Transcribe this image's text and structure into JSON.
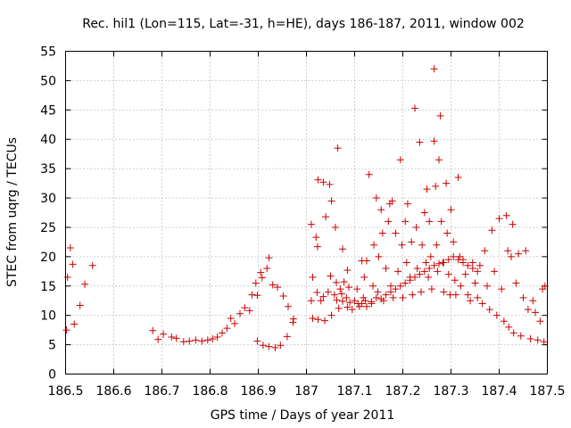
{
  "chart_data": {
    "type": "scatter",
    "title": "Rec. hil1 (Lon=115, Lat=-31, h=HE), days 186-187, 2011, window 002",
    "xlabel": "GPS time / Days of year 2011",
    "ylabel": "STEC from uqrg / TECUs",
    "xlim": [
      186.5,
      187.5
    ],
    "ylim": [
      0,
      55
    ],
    "xticks": [
      186.5,
      186.6,
      186.7,
      186.8,
      186.9,
      187,
      187.1,
      187.2,
      187.3,
      187.4,
      187.5
    ],
    "xtick_labels": [
      "186.5",
      "186.6",
      "186.7",
      "186.8",
      "186.9",
      "187",
      "187.1",
      "187.2",
      "187.3",
      "187.4",
      "187.5"
    ],
    "yticks": [
      0,
      5,
      10,
      15,
      20,
      25,
      30,
      35,
      40,
      45,
      50,
      55
    ],
    "ytick_labels": [
      "0",
      "5",
      "10",
      "15",
      "20",
      "25",
      "30",
      "35",
      "40",
      "45",
      "50",
      "55"
    ],
    "grid": true,
    "marker": "+",
    "color": "#cc0000",
    "series": [
      {
        "name": "STEC",
        "points": [
          [
            186.502,
            7.5
          ],
          [
            186.504,
            16.5
          ],
          [
            186.51,
            21.5
          ],
          [
            186.515,
            18.7
          ],
          [
            186.518,
            8.5
          ],
          [
            186.53,
            11.7
          ],
          [
            186.54,
            15.3
          ],
          [
            186.556,
            18.5
          ],
          [
            186.681,
            7.4
          ],
          [
            186.692,
            5.9
          ],
          [
            186.703,
            6.8
          ],
          [
            186.72,
            6.3
          ],
          [
            186.73,
            6.1
          ],
          [
            186.745,
            5.5
          ],
          [
            186.757,
            5.6
          ],
          [
            186.77,
            5.8
          ],
          [
            186.783,
            5.6
          ],
          [
            186.795,
            5.8
          ],
          [
            186.805,
            6.0
          ],
          [
            186.815,
            6.3
          ],
          [
            186.825,
            7.0
          ],
          [
            186.835,
            7.8
          ],
          [
            186.843,
            9.5
          ],
          [
            186.851,
            8.6
          ],
          [
            186.862,
            10.3
          ],
          [
            186.872,
            11.3
          ],
          [
            186.882,
            10.8
          ],
          [
            186.887,
            13.5
          ],
          [
            186.895,
            15.5
          ],
          [
            186.898,
            13.4
          ],
          [
            186.905,
            17.3
          ],
          [
            186.908,
            16.4
          ],
          [
            186.918,
            18.0
          ],
          [
            186.922,
            19.8
          ],
          [
            186.93,
            15.2
          ],
          [
            186.94,
            14.8
          ],
          [
            186.952,
            13.3
          ],
          [
            186.962,
            11.5
          ],
          [
            186.973,
            9.4
          ],
          [
            186.898,
            5.6
          ],
          [
            186.91,
            4.9
          ],
          [
            186.922,
            4.7
          ],
          [
            186.935,
            4.5
          ],
          [
            186.946,
            4.9
          ],
          [
            186.96,
            6.4
          ],
          [
            186.972,
            8.8
          ],
          [
            187.01,
            25.5
          ],
          [
            187.013,
            16.5
          ],
          [
            187.02,
            23.3
          ],
          [
            187.023,
            21.7
          ],
          [
            187.024,
            33.1
          ],
          [
            187.035,
            32.7
          ],
          [
            187.04,
            26.8
          ],
          [
            187.048,
            32.3
          ],
          [
            187.052,
            29.5
          ],
          [
            187.06,
            25.0
          ],
          [
            187.065,
            38.5
          ],
          [
            187.075,
            21.3
          ],
          [
            187.085,
            17.7
          ],
          [
            187.01,
            12.5
          ],
          [
            187.013,
            9.5
          ],
          [
            187.022,
            13.9
          ],
          [
            187.024,
            9.3
          ],
          [
            187.03,
            12.5
          ],
          [
            187.035,
            13.2
          ],
          [
            187.038,
            9.1
          ],
          [
            187.045,
            14.0
          ],
          [
            187.05,
            16.7
          ],
          [
            187.052,
            10.0
          ],
          [
            187.058,
            13.5
          ],
          [
            187.062,
            15.6
          ],
          [
            187.063,
            12.6
          ],
          [
            187.067,
            11.2
          ],
          [
            187.07,
            14.5
          ],
          [
            187.073,
            13.7
          ],
          [
            187.075,
            12.4
          ],
          [
            187.078,
            15.7
          ],
          [
            187.083,
            13.0
          ],
          [
            187.085,
            11.4
          ],
          [
            187.088,
            14.8
          ],
          [
            187.09,
            12.2
          ],
          [
            187.095,
            11.0
          ],
          [
            187.1,
            12.5
          ],
          [
            187.105,
            14.5
          ],
          [
            187.107,
            12.0
          ],
          [
            187.11,
            11.5
          ],
          [
            187.115,
            19.3
          ],
          [
            187.118,
            13.0
          ],
          [
            187.12,
            16.5
          ],
          [
            187.122,
            12.5
          ],
          [
            187.125,
            19.3
          ],
          [
            187.13,
            34.0
          ],
          [
            187.135,
            12.0
          ],
          [
            187.138,
            15.0
          ],
          [
            187.14,
            22.0
          ],
          [
            187.145,
            30.0
          ],
          [
            187.148,
            14.0
          ],
          [
            187.15,
            20.0
          ],
          [
            187.155,
            28.0
          ],
          [
            187.158,
            24.0
          ],
          [
            187.16,
            12.5
          ],
          [
            187.165,
            18.0
          ],
          [
            187.17,
            26.0
          ],
          [
            187.173,
            29.0
          ],
          [
            187.175,
            15.0
          ],
          [
            187.178,
            29.5
          ],
          [
            187.18,
            13.0
          ],
          [
            187.185,
            24.0
          ],
          [
            187.19,
            17.5
          ],
          [
            187.195,
            36.5
          ],
          [
            187.198,
            22.0
          ],
          [
            187.2,
            13.0
          ],
          [
            187.205,
            26.0
          ],
          [
            187.208,
            19.0
          ],
          [
            187.21,
            29.0
          ],
          [
            187.215,
            16.5
          ],
          [
            187.218,
            22.5
          ],
          [
            187.22,
            13.5
          ],
          [
            187.225,
            45.3
          ],
          [
            187.228,
            25.0
          ],
          [
            187.23,
            18.0
          ],
          [
            187.235,
            39.5
          ],
          [
            187.238,
            14.0
          ],
          [
            187.24,
            22.0
          ],
          [
            187.245,
            27.5
          ],
          [
            187.248,
            19.0
          ],
          [
            187.25,
            31.5
          ],
          [
            187.253,
            16.5
          ],
          [
            187.255,
            26.0
          ],
          [
            187.258,
            20.0
          ],
          [
            187.26,
            14.5
          ],
          [
            187.265,
            39.7
          ],
          [
            187.265,
            52.0
          ],
          [
            187.268,
            32.0
          ],
          [
            187.27,
            22.0
          ],
          [
            187.272,
            17.5
          ],
          [
            187.275,
            36.5
          ],
          [
            187.278,
            44.0
          ],
          [
            187.28,
            26.0
          ],
          [
            187.283,
            19.0
          ],
          [
            187.285,
            14.0
          ],
          [
            187.29,
            32.5
          ],
          [
            187.292,
            24.0
          ],
          [
            187.295,
            17.0
          ],
          [
            187.298,
            13.5
          ],
          [
            187.3,
            28.0
          ],
          [
            187.305,
            22.5
          ],
          [
            187.308,
            16.0
          ],
          [
            187.31,
            13.5
          ],
          [
            187.315,
            33.5
          ],
          [
            187.318,
            20.0
          ],
          [
            187.32,
            15.0
          ],
          [
            187.325,
            19.5
          ],
          [
            187.33,
            17.0
          ],
          [
            187.335,
            13.5
          ],
          [
            187.34,
            12.5
          ],
          [
            187.345,
            19.0
          ],
          [
            187.35,
            15.5
          ],
          [
            187.355,
            13.0
          ],
          [
            187.36,
            18.5
          ],
          [
            187.365,
            12.0
          ],
          [
            187.37,
            21.0
          ],
          [
            187.375,
            15.0
          ],
          [
            187.38,
            11.0
          ],
          [
            187.385,
            24.5
          ],
          [
            187.39,
            17.5
          ],
          [
            187.395,
            10.0
          ],
          [
            187.4,
            26.5
          ],
          [
            187.405,
            14.5
          ],
          [
            187.41,
            9.0
          ],
          [
            187.415,
            27.0
          ],
          [
            187.418,
            21.0
          ],
          [
            187.42,
            8.0
          ],
          [
            187.425,
            20.0
          ],
          [
            187.428,
            25.5
          ],
          [
            187.43,
            7.0
          ],
          [
            187.435,
            15.5
          ],
          [
            187.44,
            20.5
          ],
          [
            187.445,
            6.5
          ],
          [
            187.45,
            13.0
          ],
          [
            187.455,
            21.0
          ],
          [
            187.46,
            11.0
          ],
          [
            187.465,
            6.0
          ],
          [
            187.47,
            12.5
          ],
          [
            187.475,
            10.5
          ],
          [
            187.48,
            5.8
          ],
          [
            187.485,
            9.0
          ],
          [
            187.49,
            14.5
          ],
          [
            187.493,
            5.5
          ],
          [
            187.495,
            15.0
          ],
          [
            187.115,
            12.0
          ],
          [
            187.125,
            11.5
          ],
          [
            187.135,
            12.3
          ],
          [
            187.145,
            13.0
          ],
          [
            187.155,
            12.8
          ],
          [
            187.165,
            13.5
          ],
          [
            187.175,
            14.0
          ],
          [
            187.185,
            14.5
          ],
          [
            187.195,
            15.0
          ],
          [
            187.205,
            15.5
          ],
          [
            187.215,
            16.0
          ],
          [
            187.225,
            16.5
          ],
          [
            187.235,
            17.0
          ],
          [
            187.245,
            17.5
          ],
          [
            187.255,
            18.0
          ],
          [
            187.265,
            18.5
          ],
          [
            187.275,
            18.8
          ],
          [
            187.285,
            19.0
          ],
          [
            187.295,
            19.5
          ],
          [
            187.305,
            20.0
          ],
          [
            187.315,
            19.5
          ],
          [
            187.325,
            19.0
          ],
          [
            187.335,
            18.5
          ],
          [
            187.345,
            18.0
          ],
          [
            187.355,
            17.5
          ]
        ]
      }
    ]
  }
}
